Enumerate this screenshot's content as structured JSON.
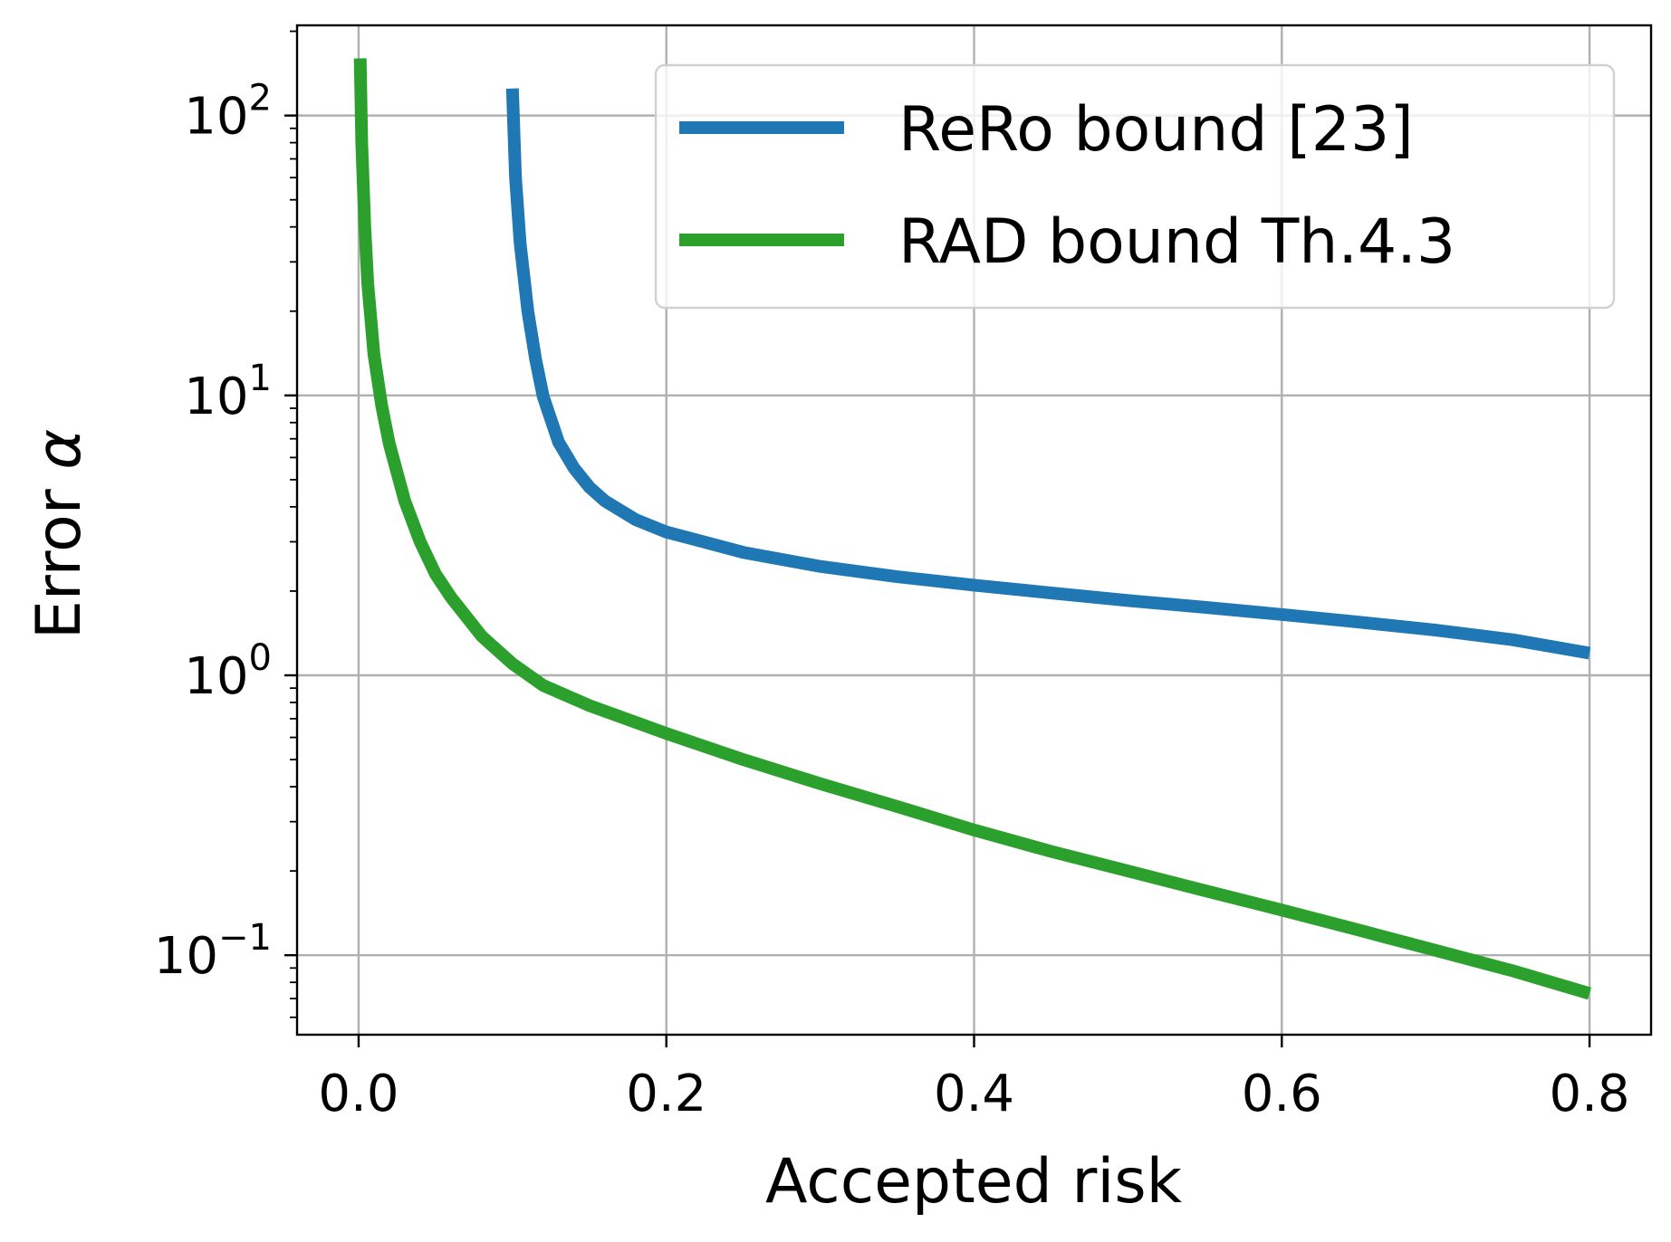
{
  "chart_data": {
    "type": "line",
    "xlabel": "Accepted risk",
    "ylabel_text": "Error ",
    "ylabel_symbol": "α",
    "xlim": [
      -0.04,
      0.84
    ],
    "ylim": [
      0.052,
      210
    ],
    "yscale": "log",
    "grid": true,
    "legend_position": "top-right",
    "x_ticks": [
      {
        "value": 0.0,
        "label": "0.0"
      },
      {
        "value": 0.2,
        "label": "0.2"
      },
      {
        "value": 0.4,
        "label": "0.4"
      },
      {
        "value": 0.6,
        "label": "0.6"
      },
      {
        "value": 0.8,
        "label": "0.8"
      }
    ],
    "y_ticks": [
      {
        "value": 0.1,
        "base": "10",
        "exp": "−1"
      },
      {
        "value": 1,
        "base": "10",
        "exp": "0"
      },
      {
        "value": 10,
        "base": "10",
        "exp": "1"
      },
      {
        "value": 100,
        "base": "10",
        "exp": "2"
      }
    ],
    "series": [
      {
        "name": "ReRo bound [23]",
        "color": "#1f77b4",
        "x": [
          0.1,
          0.102,
          0.105,
          0.11,
          0.115,
          0.12,
          0.13,
          0.14,
          0.15,
          0.16,
          0.18,
          0.2,
          0.25,
          0.3,
          0.35,
          0.4,
          0.45,
          0.5,
          0.55,
          0.6,
          0.65,
          0.7,
          0.75,
          0.8
        ],
        "y": [
          125,
          60,
          35,
          20,
          13.5,
          9.9,
          6.8,
          5.5,
          4.7,
          4.2,
          3.6,
          3.25,
          2.75,
          2.45,
          2.25,
          2.1,
          1.97,
          1.85,
          1.75,
          1.65,
          1.55,
          1.45,
          1.34,
          1.2
        ]
      },
      {
        "name": "RAD bound Th.4.3",
        "color": "#2ca02c",
        "x": [
          0.001,
          0.002,
          0.004,
          0.006,
          0.01,
          0.015,
          0.02,
          0.03,
          0.04,
          0.05,
          0.06,
          0.08,
          0.1,
          0.12,
          0.15,
          0.2,
          0.25,
          0.3,
          0.35,
          0.4,
          0.45,
          0.5,
          0.55,
          0.6,
          0.65,
          0.7,
          0.75,
          0.8
        ],
        "y": [
          160,
          80,
          40,
          25,
          14,
          9.2,
          6.7,
          4.2,
          3.0,
          2.3,
          1.9,
          1.38,
          1.1,
          0.92,
          0.78,
          0.62,
          0.5,
          0.41,
          0.34,
          0.28,
          0.235,
          0.2,
          0.17,
          0.145,
          0.123,
          0.104,
          0.088,
          0.073
        ]
      }
    ]
  }
}
